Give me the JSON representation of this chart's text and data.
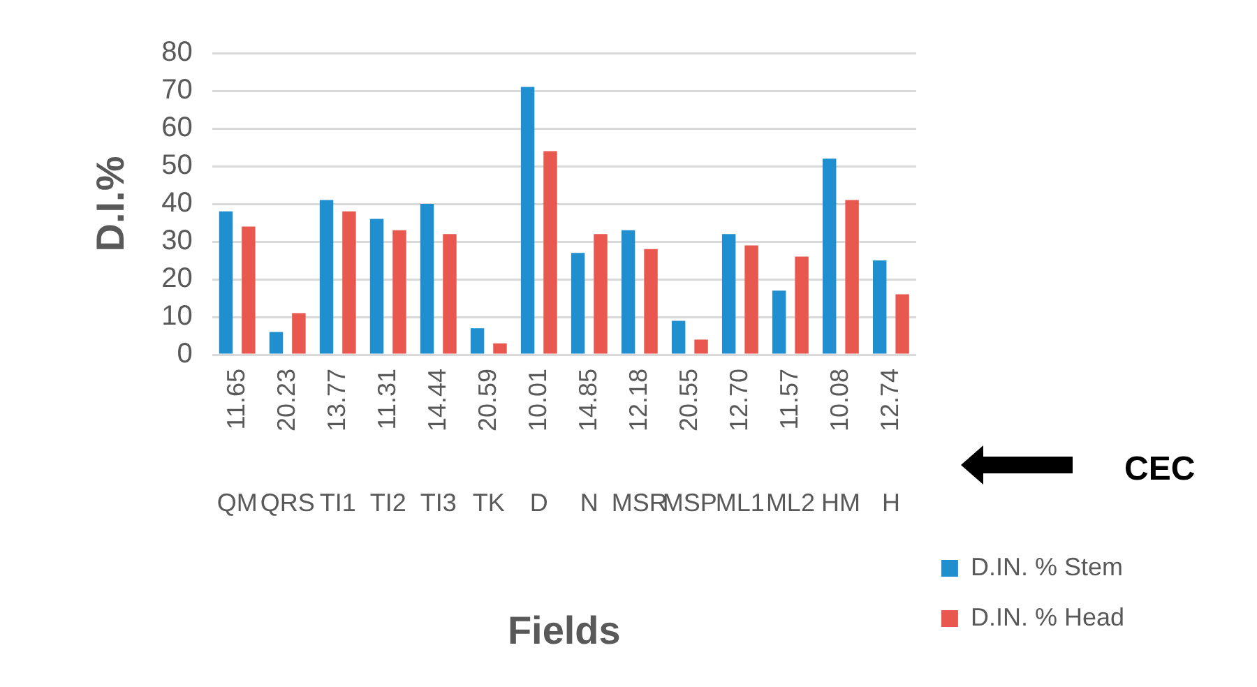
{
  "chart_data": {
    "type": "bar",
    "xlabel": "Fields",
    "ylabel": "D.I.%",
    "categories": [
      "QM",
      "QRS",
      "TI1",
      "TI2",
      "TI3",
      "TK",
      "D",
      "N",
      "MSR",
      "MSP",
      "ML1",
      "ML2",
      "HM",
      "H"
    ],
    "series": [
      {
        "name": "D.IN. % Stem",
        "color": "#1f8fcf",
        "values": [
          38,
          6,
          41,
          36,
          40,
          7,
          71,
          27,
          33,
          9,
          32,
          17,
          52,
          25
        ]
      },
      {
        "name": "D.IN. % Head",
        "color": "#e8584f",
        "values": [
          34,
          11,
          38,
          33,
          32,
          3,
          54,
          32,
          28,
          4,
          29,
          26,
          41,
          16
        ]
      }
    ],
    "ylim": [
      0,
      80
    ],
    "yticks": [
      0,
      10,
      20,
      30,
      40,
      50,
      60,
      70,
      80
    ],
    "grid": "y",
    "legend": "right",
    "annotations": [
      "11.65",
      "20.23",
      "13.77",
      "11.31",
      "14.44",
      "20.59",
      "10.01",
      "14.85",
      "12.18",
      "20.55",
      "12.70",
      "11.57",
      "10.08",
      "12.74",
      "CEC"
    ]
  }
}
